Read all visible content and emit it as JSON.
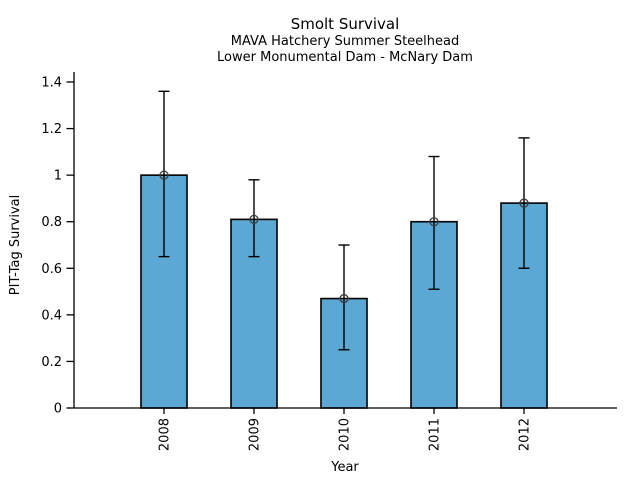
{
  "chart_data": {
    "type": "bar",
    "title": "Smolt Survival",
    "subtitle_line1": "MAVA Hatchery Summer Steelhead",
    "subtitle_line2": "Lower Monumental Dam - McNary Dam",
    "xlabel": "Year",
    "ylabel": "PIT-Tag Survival",
    "categories": [
      "2008",
      "2009",
      "2010",
      "2011",
      "2012"
    ],
    "values": [
      1.0,
      0.81,
      0.47,
      0.8,
      0.88
    ],
    "error_low": [
      0.65,
      0.65,
      0.25,
      0.51,
      0.6
    ],
    "error_high": [
      1.36,
      0.98,
      0.7,
      1.08,
      1.16
    ],
    "yticks": [
      0,
      0.2,
      0.4,
      0.6,
      0.8,
      1,
      1.2,
      1.4
    ],
    "ytick_labels": [
      "0",
      "0.2",
      "0.4",
      "0.6",
      "0.8",
      "1",
      "1.2",
      "1.4"
    ],
    "ylim": [
      0,
      1.44
    ],
    "grid": false,
    "legend_position": "none",
    "marker": "open-circle",
    "colors": {
      "bar_fill": "#5BA8D4",
      "bar_edge": "#000000",
      "error_bar": "#000000",
      "marker_edge": "#3c3c3c",
      "axis": "#000000",
      "background": "#ffffff"
    },
    "x_tick_rotation_deg": 90
  }
}
